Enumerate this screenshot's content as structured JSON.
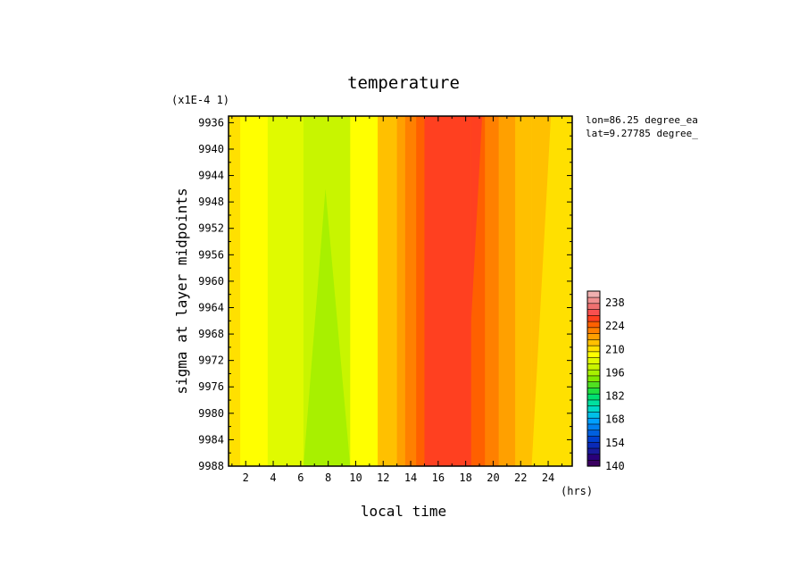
{
  "chart_data": {
    "type": "heatmap",
    "title": "temperature",
    "xlabel": "local time",
    "ylabel": "sigma at layer midpoints",
    "x_units": "(hrs)",
    "y_scale_note": "(x1E-4 1)",
    "annotations": [
      "lon=86.25 degree_ea",
      "lat=9.27785 degree_"
    ],
    "xlim": [
      0.75,
      25.75
    ],
    "ylim": [
      9935,
      9988
    ],
    "y_reversed": true,
    "x_ticks": [
      2,
      4,
      6,
      8,
      10,
      12,
      14,
      16,
      18,
      20,
      22,
      24
    ],
    "y_ticks": [
      9936,
      9940,
      9944,
      9948,
      9952,
      9956,
      9960,
      9964,
      9968,
      9972,
      9976,
      9980,
      9984,
      9988
    ],
    "bands": [
      {
        "x0": 0.75,
        "x1": 1.6,
        "level": 210
      },
      {
        "x0": 1.6,
        "x1": 3.6,
        "level": 207
      },
      {
        "x0": 3.6,
        "x1": 6.2,
        "level": 203
      },
      {
        "x0": 6.2,
        "x1": 9.6,
        "level": 200
      },
      {
        "x0": 9.6,
        "x1": 11.6,
        "level": 207
      },
      {
        "x0": 11.6,
        "x1": 13.0,
        "level": 213
      },
      {
        "x0": 13.0,
        "x1": 13.6,
        "level": 217
      },
      {
        "x0": 13.6,
        "x1": 14.4,
        "level": 221
      },
      {
        "x0": 14.4,
        "x1": 15.0,
        "level": 224
      },
      {
        "x0": 15.0,
        "x1": 18.4,
        "level": 228
      },
      {
        "x0": 18.4,
        "x1": 19.4,
        "level": 224
      },
      {
        "x0": 19.4,
        "x1": 20.4,
        "level": 221
      },
      {
        "x0": 20.4,
        "x1": 21.6,
        "level": 217
      },
      {
        "x0": 21.6,
        "x1": 22.8,
        "level": 213
      },
      {
        "x0": 22.8,
        "x1": 25.75,
        "level": 210
      }
    ],
    "colorbar": {
      "min": 140,
      "max": 245,
      "tick_labels": [
        140,
        154,
        168,
        182,
        196,
        210,
        224,
        238
      ],
      "colors": [
        "#3a0060",
        "#2a007a",
        "#1a1a9a",
        "#0a2ab8",
        "#0040d0",
        "#0060e0",
        "#0080f0",
        "#00a0ff",
        "#00c0e8",
        "#00d8c8",
        "#00e0a0",
        "#00e070",
        "#20e040",
        "#50e020",
        "#80e800",
        "#a8f000",
        "#c8f500",
        "#e0fa00",
        "#ffff00",
        "#ffe000",
        "#ffc000",
        "#ffa000",
        "#ff8000",
        "#ff6000",
        "#ff4020",
        "#f85050",
        "#f07070",
        "#f09090",
        "#f0b0b0"
      ]
    }
  }
}
